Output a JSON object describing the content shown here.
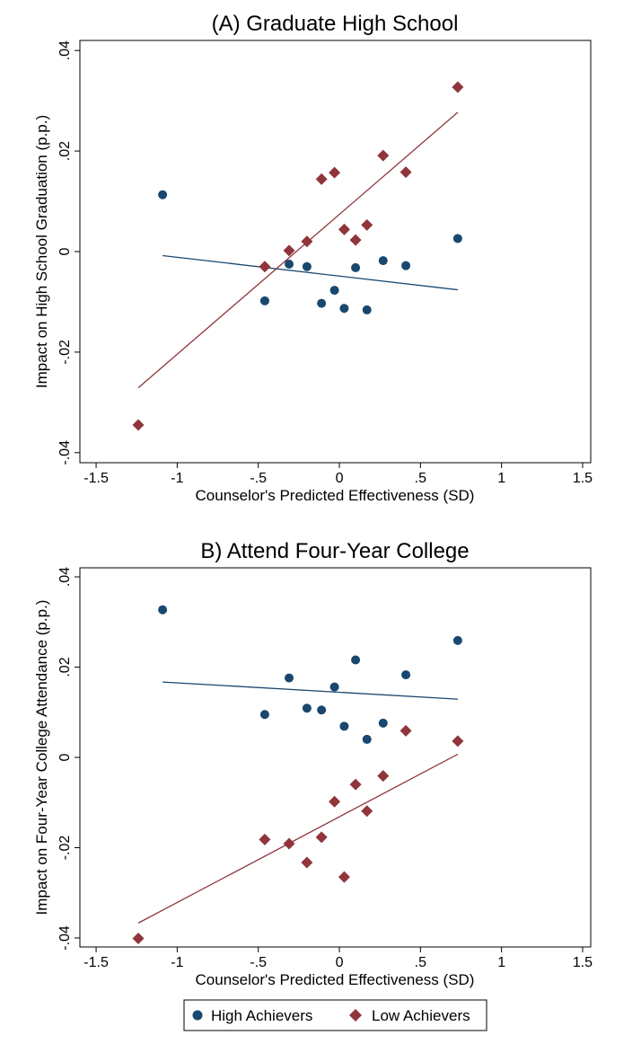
{
  "chart_data": [
    {
      "type": "scatter",
      "title": "(A) Graduate High School",
      "xlabel": "Counselor's Predicted Effectiveness (SD)",
      "ylabel": "Impact on High School Graduation (p.p.)",
      "xlim": [
        -1.6,
        1.55
      ],
      "ylim": [
        -0.042,
        0.042
      ],
      "xticks": [
        -1.5,
        -1,
        -0.5,
        0,
        0.5,
        1,
        1.5
      ],
      "xtick_labels": [
        "-1.5",
        "-1",
        "-.5",
        "0",
        ".5",
        "1",
        "1.5"
      ],
      "yticks": [
        -0.04,
        -0.02,
        0,
        0.02,
        0.04
      ],
      "ytick_labels": [
        "-.04",
        "-.02",
        "0",
        ".02",
        ".04"
      ],
      "grid": false,
      "series": [
        {
          "name": "High Achievers",
          "marker": "circle",
          "color": "#1a476f",
          "points": [
            [
              -1.09,
              0.0113
            ],
            [
              -0.46,
              -0.0098
            ],
            [
              -0.31,
              -0.0025
            ],
            [
              -0.2,
              -0.003
            ],
            [
              -0.11,
              -0.0103
            ],
            [
              -0.03,
              -0.0077
            ],
            [
              0.03,
              -0.0113
            ],
            [
              0.1,
              -0.0032
            ],
            [
              0.17,
              -0.0116
            ],
            [
              0.27,
              -0.0018
            ],
            [
              0.41,
              -0.0028
            ],
            [
              0.73,
              0.0026
            ]
          ],
          "fit_line": [
            [
              -1.09,
              -0.0008
            ],
            [
              0.73,
              -0.0076
            ]
          ]
        },
        {
          "name": "Low Achievers",
          "marker": "diamond",
          "color": "#90353b",
          "points": [
            [
              -1.24,
              -0.0345
            ],
            [
              -0.46,
              -0.003
            ],
            [
              -0.31,
              0.0002
            ],
            [
              -0.2,
              0.002
            ],
            [
              -0.11,
              0.0144
            ],
            [
              -0.03,
              0.0157
            ],
            [
              0.03,
              0.0044
            ],
            [
              0.1,
              0.0023
            ],
            [
              0.17,
              0.0053
            ],
            [
              0.27,
              0.0191
            ],
            [
              0.41,
              0.0158
            ],
            [
              0.73,
              0.0327
            ]
          ],
          "fit_line": [
            [
              -1.24,
              -0.0271
            ],
            [
              0.73,
              0.0277
            ]
          ]
        }
      ]
    },
    {
      "type": "scatter",
      "title": "B) Attend Four-Year College",
      "xlabel": "Counselor's Predicted Effectiveness (SD)",
      "ylabel": "Impact on Four-Year College Attendance (p.p.)",
      "xlim": [
        -1.6,
        1.55
      ],
      "ylim": [
        -0.042,
        0.042
      ],
      "xticks": [
        -1.5,
        -1,
        -0.5,
        0,
        0.5,
        1,
        1.5
      ],
      "xtick_labels": [
        "-1.5",
        "-1",
        "-.5",
        "0",
        ".5",
        "1",
        "1.5"
      ],
      "yticks": [
        -0.04,
        -0.02,
        0,
        0.02,
        0.04
      ],
      "ytick_labels": [
        "-.04",
        "-.02",
        "0",
        ".02",
        ".04"
      ],
      "grid": false,
      "series": [
        {
          "name": "High Achievers",
          "marker": "circle",
          "color": "#1a476f",
          "points": [
            [
              -1.09,
              0.0327
            ],
            [
              -0.46,
              0.0095
            ],
            [
              -0.31,
              0.0176
            ],
            [
              -0.2,
              0.0109
            ],
            [
              -0.11,
              0.0105
            ],
            [
              -0.03,
              0.0156
            ],
            [
              0.03,
              0.0069
            ],
            [
              0.1,
              0.0216
            ],
            [
              0.17,
              0.004
            ],
            [
              0.27,
              0.0076
            ],
            [
              0.41,
              0.0183
            ],
            [
              0.73,
              0.0259
            ]
          ],
          "fit_line": [
            [
              -1.09,
              0.0167
            ],
            [
              0.73,
              0.0129
            ]
          ]
        },
        {
          "name": "Low Achievers",
          "marker": "diamond",
          "color": "#90353b",
          "points": [
            [
              -1.24,
              -0.0401
            ],
            [
              -0.46,
              -0.0182
            ],
            [
              -0.31,
              -0.0191
            ],
            [
              -0.2,
              -0.0233
            ],
            [
              -0.11,
              -0.0177
            ],
            [
              -0.03,
              -0.0098
            ],
            [
              0.03,
              -0.0265
            ],
            [
              0.1,
              -0.006
            ],
            [
              0.17,
              -0.0119
            ],
            [
              0.27,
              -0.0041
            ],
            [
              0.41,
              0.0059
            ],
            [
              0.73,
              0.0036
            ]
          ],
          "fit_line": [
            [
              -1.24,
              -0.0367
            ],
            [
              0.73,
              0.0007
            ]
          ]
        }
      ]
    }
  ],
  "legend": {
    "position": "bottom-center",
    "entries": [
      {
        "label": "High Achievers",
        "marker": "circle",
        "color": "#1a476f"
      },
      {
        "label": "Low Achievers",
        "marker": "diamond",
        "color": "#90353b"
      }
    ]
  }
}
